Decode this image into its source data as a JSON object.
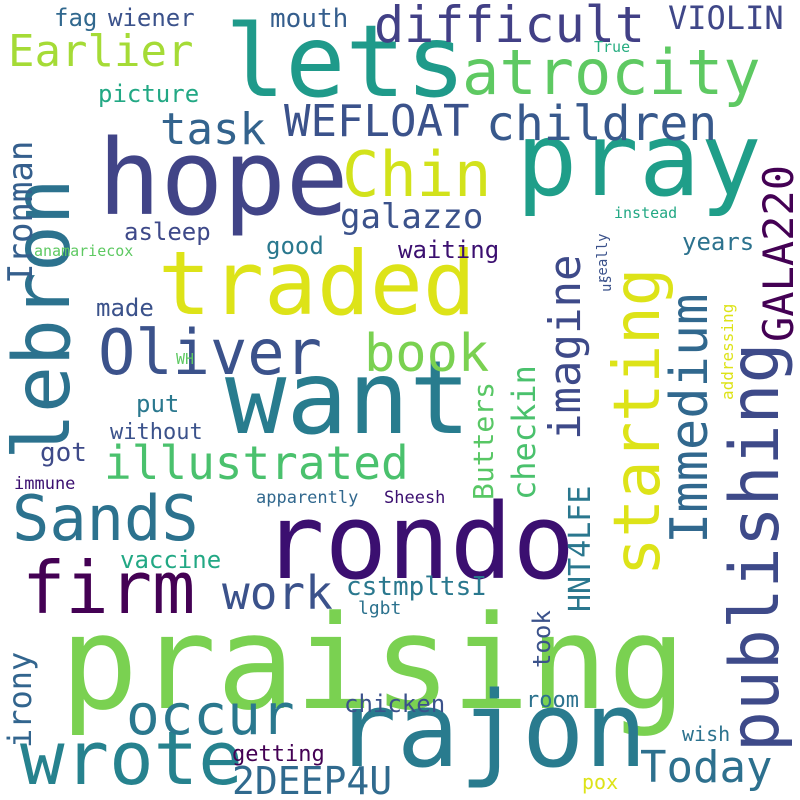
{
  "words": [
    {
      "text": "praising",
      "color": "#7ad151"
    },
    {
      "text": "lebron",
      "color": "#2c728e"
    },
    {
      "text": "rondo",
      "color": "#3b0f70"
    },
    {
      "text": "want",
      "color": "#287c8e"
    },
    {
      "text": "traded",
      "color": "#dde318"
    },
    {
      "text": "hope",
      "color": "#414487"
    },
    {
      "text": "lets",
      "color": "#1f9a8a"
    },
    {
      "text": "pray",
      "color": "#1f9e89"
    },
    {
      "text": "rajon",
      "color": "#297b8e"
    },
    {
      "text": "publishing",
      "color": "#3e4a89"
    },
    {
      "text": "Oliver",
      "color": "#3b528b"
    },
    {
      "text": "atrocity",
      "color": "#5ec962"
    },
    {
      "text": "wrote",
      "color": "#26828e"
    },
    {
      "text": "starting",
      "color": "#dde318"
    },
    {
      "text": "firm",
      "color": "#440154"
    },
    {
      "text": "SandS",
      "color": "#2c728e"
    },
    {
      "text": "occur",
      "color": "#2a788e"
    },
    {
      "text": "illustrated",
      "color": "#4ac16d"
    },
    {
      "text": "Immedium",
      "color": "#31688e"
    },
    {
      "text": "Chin",
      "color": "#d2e21b"
    },
    {
      "text": "difficult",
      "color": "#424086"
    },
    {
      "text": "children",
      "color": "#38598c"
    },
    {
      "text": "Earlier",
      "color": "#a5db36"
    },
    {
      "text": "book",
      "color": "#7ad151"
    },
    {
      "text": "imagine",
      "color": "#3e4a89"
    },
    {
      "text": "Today",
      "color": "#2d708e"
    },
    {
      "text": "WEFLOAT",
      "color": "#3b528b"
    },
    {
      "text": "task",
      "color": "#33638d"
    },
    {
      "text": "GALA220",
      "color": "#440154"
    },
    {
      "text": "work",
      "color": "#3b528b"
    },
    {
      "text": "2DEEP4U",
      "color": "#306a8e"
    },
    {
      "text": "Ironman",
      "color": "#355f8d"
    },
    {
      "text": "galazzo",
      "color": "#3b528b"
    },
    {
      "text": "checkin",
      "color": "#4ac16d"
    },
    {
      "text": "HNT4LFE",
      "color": "#2a778e"
    },
    {
      "text": "Butters",
      "color": "#58c765"
    },
    {
      "text": "irony",
      "color": "#32658e"
    },
    {
      "text": "VIOLIN",
      "color": "#3f4788"
    },
    {
      "text": "mouth",
      "color": "#355e8d"
    },
    {
      "text": "picture",
      "color": "#22a884"
    },
    {
      "text": "fag",
      "color": "#31688e"
    },
    {
      "text": "wiener",
      "color": "#3b528b"
    },
    {
      "text": "asleep",
      "color": "#3e4989"
    },
    {
      "text": "waiting",
      "color": "#3b0f70"
    },
    {
      "text": "good",
      "color": "#2a788e"
    },
    {
      "text": "years",
      "color": "#2c728e"
    },
    {
      "text": "made",
      "color": "#3b528b"
    },
    {
      "text": "put",
      "color": "#2a788e"
    },
    {
      "text": "without",
      "color": "#3b528b"
    },
    {
      "text": "got",
      "color": "#3e4a89"
    },
    {
      "text": "vaccine",
      "color": "#22a884"
    },
    {
      "text": "cstmpltsI",
      "color": "#2a788e"
    },
    {
      "text": "took",
      "color": "#3b528b"
    },
    {
      "text": "room",
      "color": "#2c728e"
    },
    {
      "text": "chicken",
      "color": "#3b528b"
    },
    {
      "text": "getting",
      "color": "#440154"
    },
    {
      "text": "wish",
      "color": "#2c728e"
    },
    {
      "text": "pox",
      "color": "#dde318"
    },
    {
      "text": "lgbt",
      "color": "#2c728e"
    },
    {
      "text": "apparently",
      "color": "#31688e"
    },
    {
      "text": "Sheesh",
      "color": "#3b0f70"
    },
    {
      "text": "immune",
      "color": "#3b0f70"
    },
    {
      "text": "anamariecox",
      "color": "#5ec962"
    },
    {
      "text": "WH",
      "color": "#5ec962"
    },
    {
      "text": "True",
      "color": "#27ad81"
    },
    {
      "text": "instead",
      "color": "#22a884"
    },
    {
      "text": "really",
      "color": "#3b528b"
    },
    {
      "text": "us",
      "color": "#3b528b"
    },
    {
      "text": "addressing",
      "color": "#dde318"
    }
  ]
}
